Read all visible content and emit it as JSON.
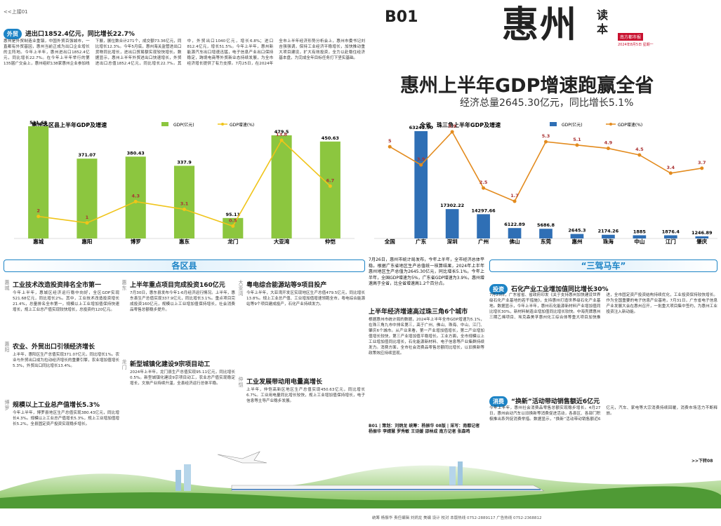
{
  "header": {
    "jump_from": "<<上接01",
    "page": "B01",
    "masthead": "惠州",
    "masthead_side": "读本",
    "paper": "南方都市报",
    "date": "2024年8月5日 星期一"
  },
  "headline": {
    "title": "惠州上半年GDP增速跑赢全省",
    "subtitle": "经济总量2645.30亿元，同比增长5.1%"
  },
  "trade": {
    "tag": "外贸",
    "title": "进出口1852.4亿元，同比增长22.7%",
    "body": "惠州是外贸制造业重镇，中国外贸百强城市，一直都有外贸基因，惠州当前正成为出口企业增长的主阵地。今年上半年，惠州进出口1852.4亿元，同比增长22.7%。在今年上半年举行的第135届广交会上，惠州组织138家惠州企业参加线下展，展位数合计271个，成交额73.36亿元，同比增长12.3%。今年5月底，惠州海关监管进出口货物同比增长，进出口贸易额实现较快增长。数据显示，惠州上半年外贸进出口快速增长，外贸进出口总值1852.4亿元，同比增长22.7%。其中，外贸出口1040亿元，增长6.8%；进口812.4亿元，增长51.5%。今年上半年，惠州新能源汽车出口增速迅猛，电子信息产业出口保持稳定，跨境电商等外贸新业态持续发展，为全市经济增长提供了有力支撑。7月25日，在2024年全市上半年经济形势分析会上，惠州市委书记刘吉强强调，保持工业经济平稳增长，加快推动重大项目建设，扩大有效投资，全力以赴稳住经济基本盘，为完成全年目标任务打下坚实基础。"
  },
  "chart_data": [
    {
      "type": "bar",
      "title": "惠州各区县上半年GDP及增速",
      "categories": [
        "惠城",
        "惠阳",
        "博罗",
        "惠东",
        "龙门",
        "大亚湾",
        "仲恺"
      ],
      "series": [
        {
          "name": "GDP(亿元)",
          "kind": "bar",
          "color": "#8cc63f",
          "values": [
            521.68,
            371.07,
            380.43,
            337.9,
            95.11,
            479.5,
            450.63
          ]
        },
        {
          "name": "GDP增速(%)",
          "kind": "line",
          "color": "#f0c419",
          "values": [
            2,
            1,
            4.3,
            3.1,
            0.5,
            13.8,
            6.7
          ]
        }
      ],
      "legend": "top-right"
    },
    {
      "type": "bar",
      "title": "全省、珠三角上半年GDP及增速",
      "categories": [
        "全国",
        "广东",
        "深圳",
        "广州",
        "佛山",
        "东莞",
        "惠州",
        "珠海",
        "中山",
        "江门",
        "肇庆"
      ],
      "series": [
        {
          "name": "GDP(亿元)",
          "kind": "bar",
          "color": "#2f6fb5",
          "values": [
            null,
            63242.5,
            17302.22,
            14297.66,
            6122.89,
            5686.8,
            2645.3,
            2174.26,
            1885,
            1876.4,
            1246.89
          ],
          "value_labels": [
            null,
            "63242.50",
            "17302.22",
            "14297.66",
            "6122.89",
            "5686.8",
            "2645.3",
            "2174.26",
            "1885",
            "1876.4",
            "1246.89"
          ]
        },
        {
          "name": "GDP增速(%)",
          "kind": "line",
          "color": "#e38b1e",
          "values": [
            5,
            3.9,
            5.9,
            2.5,
            1.7,
            5.3,
            5.1,
            4.9,
            4.5,
            3.4,
            3.7
          ]
        }
      ],
      "legend": "top-right"
    }
  ],
  "districts": {
    "banner": "各区县",
    "items": [
      {
        "area": "惠城",
        "title": "工业技术改造投资排名全市第一",
        "body": "今年上半年，惠城区经济运行稳中向好，全区GDP实现521.68亿元，同比增长2%。其中，工业技术改造投资增长21.4%，总量排名全市第一，规模以上工业增加值保持快速增长，规上工业总产值实现较快增长，总投资约120亿元。"
      },
      {
        "area": "惠阳",
        "title": "农业、外贸出口引领经济增长",
        "body": "上半年，惠阳区生产总值实现371.07亿元，同比增长1%。农业与外贸出口成为拉动经济增长的重要引擎，农业增加值增长5.3%，外贸出口同比增长13.4%。"
      },
      {
        "area": "博罗",
        "title": "规模以上工业总产值增长5.3%",
        "body": "今年上半年，博罗县地区生产总值实现380.43亿元，同比增长4.3%。规模以上工业总产值增长5.3%，规上工业增加值增长5.2%，全县固定资产投资实现稳步增长。"
      },
      {
        "area": "惠东",
        "title": "上半年重点项目完成投资160亿元",
        "body": "7月30日，惠东县发布今年1-6月经济运行情况。上半年，惠东县生产总值实现337.9亿元，同比增长3.1%。重点项目完成投资160亿元，规模以上工业增加值保持增长，社会消费品零售总额稳步提升。"
      },
      {
        "area": "龙门",
        "title": "新型城镇化建设9宗项目动工",
        "body": "2024年上半年，龙门县生产总值实现95.11亿元，同比增长0.5%。新型城镇化建设9宗项目动工，农业总产值实现稳定增长，文旅产业持续升温，全县经济运行总体平稳。"
      },
      {
        "area": "大亚湾",
        "title": "粤电综合能源站等9项目投产",
        "body": "今年上半年，大亚湾开发区实现地区生产总值479.5亿元，同比增长13.8%。规上工业总产值、工业增加值增速领跑全市，粤电综合能源站等9个项目建成投产，石化产业持续发力。"
      },
      {
        "area": "仲恺",
        "title": "工业发展带动用电量高增长",
        "body": "上半年，仲恺高新区地区生产总值实现450.63亿元，同比增长6.7%。工业用电量同比增长较快，规上工业增加值保持增长，电子信息等主导产业稳步发展。"
      }
    ]
  },
  "economy": {
    "intro": "7月26日，惠州市统计局发布，今年上半年，全市经济总体平稳。根据广东省地区生产总值统一核算结果，2024年上半年惠州地区生产总值为2645.30亿元，同比增长5.1%。今年上半年，全国GDP增速为5%，广东省GDP增速为3.9%，惠州增速高于全省，比全省增速高1.2个百分点。",
    "title": "上半年经济增速高过珠三角6个城市",
    "body": "根据惠州市统计局的数据，2024年上半年全市GDP增速为5.1%，在珠三角九市中排名第三，高于广州、佛山、珠海、中山、江门、肇庆6个城市。从产业来看，第一产业增加值增长，第二产业增加值增长较快，第三产业增加值平稳增长。工业方面，全市规模以上工业增加值同比增长，石化能源新材料、电子信息等产业集群持续发力。消费方面，全市社会消费品零售总额同比增长，以旧换新等政策效应持续显现。"
  },
  "credits": "B01 | 策划：刘炳龙 统筹：杨振华 08版 | 采写：南都记者 杨振华 李婧慧 罗秀敏 王诗媛 邵林成 南方记者 张森鸣",
  "drivers": {
    "banner": "“三驾马车”",
    "items": [
      {
        "tag": "投资",
        "title": "石化产业工业增加值同比增长30%",
        "body": "7月23日，广东省省、省政府印发《关于支持惠州加快建设世界级石化产业基地的若干措施》，支持惠州打造世界级石化产业基地。数据显示，今年上半年，惠州石化能源新材料产业增加值同比增长30%，新材料制造业增加值同比增长较快。中海壳牌惠州三期乙烯项目、埃克森美孚惠州化工综合体等重大项目加快推进，全市固定资产投资结构持续优化，工业投资保持较快增长。作为全国重要的电子信息产业基地，7月31日，广东省电子信息产业发展大会在惠州召开，一批重大项目集中签约，为惠州工业投资注入新动能。"
      },
      {
        "tag": "消费",
        "title": "“换新”活动带动销售额近6亿元",
        "body": "今年上半年，惠州社会消费品零售总额实现稳步增长。4月27日，惠州启动汽车以旧换新等消费促进活动，各县区、各部门积极推出系列促消费举措。数据显示，“换新”活动带动销售额近6亿元，汽车、家电等大宗消费持续回暖，消费市场活力不断释放。"
      }
    ]
  },
  "jump_to": ">>下转08",
  "footer": "统筹 杨振华 责任编辑 刘炳龙 美编 设计 校对 本版热线 0752-2889117 广告热线 0752-2368812"
}
